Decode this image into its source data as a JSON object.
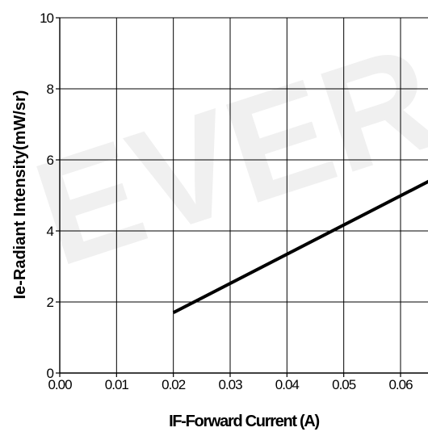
{
  "chart_data": {
    "type": "line",
    "title": "",
    "xlabel": "IF-Forward Current (A)",
    "ylabel": "Ie-Radiant Intensity(mW/sr)",
    "xlim": [
      0,
      0.07
    ],
    "ylim": [
      0,
      10
    ],
    "x_ticks": [
      "0.00",
      "0.01",
      "0.02",
      "0.03",
      "0.04",
      "0.05",
      "0.06"
    ],
    "y_ticks": [
      "0",
      "2",
      "4",
      "6",
      "8",
      "10"
    ],
    "x_tick_values": [
      0,
      0.01,
      0.02,
      0.03,
      0.04,
      0.05,
      0.06
    ],
    "y_tick_values": [
      0,
      2,
      4,
      6,
      8,
      10
    ],
    "grid": true,
    "series": [
      {
        "x": [
          0.02,
          0.065
        ],
        "y": [
          1.7,
          5.4
        ],
        "color": "#000000"
      }
    ],
    "watermark": "EVER"
  }
}
